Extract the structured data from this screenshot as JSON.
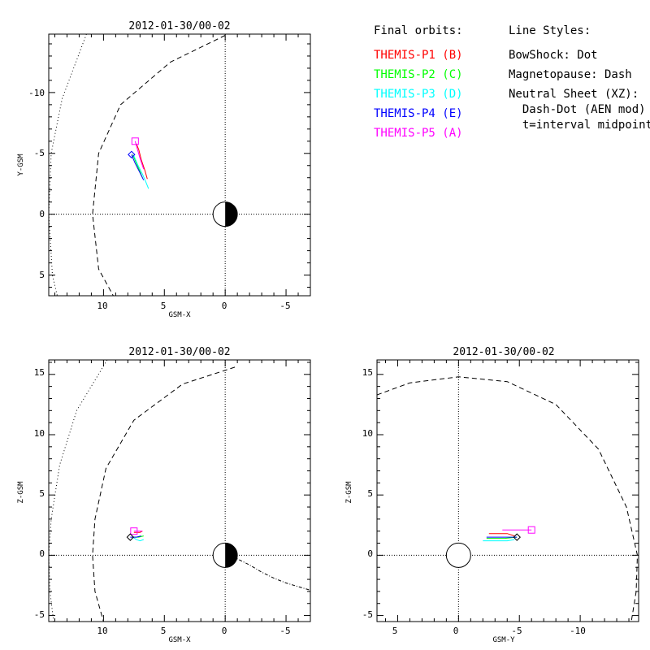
{
  "legend": {
    "orbits_title": "Final orbits:",
    "probes": [
      {
        "label": "THEMIS-P1 (B)",
        "color": "#ff0000"
      },
      {
        "label": "THEMIS-P2 (C)",
        "color": "#00ff00"
      },
      {
        "label": "THEMIS-P3 (D)",
        "color": "#00ffff"
      },
      {
        "label": "THEMIS-P4 (E)",
        "color": "#0000ff"
      },
      {
        "label": "THEMIS-P5 (A)",
        "color": "#ff00ff"
      }
    ],
    "styles_title": "Line Styles:",
    "styles": [
      "BowShock: Dot",
      "Magnetopause: Dash",
      "Neutral Sheet (XZ):",
      "  Dash-Dot (AEN mod)",
      "  t=interval midpoint"
    ]
  },
  "chart_data": [
    {
      "id": "xy",
      "type": "line",
      "title": "2012-01-30/00-02",
      "xlabel": "GSM-X",
      "ylabel": "Y-GSM",
      "xlim": [
        14.5,
        -7
      ],
      "ylim": [
        6.7,
        -14.8
      ],
      "xticks": [
        10,
        5,
        0,
        -5
      ],
      "xtick_labels": [
        "10",
        "5",
        "0",
        "-5"
      ],
      "yticks": [
        -10,
        -5,
        0,
        5
      ],
      "ytick_labels": [
        "-10",
        "-5",
        "0",
        "5"
      ],
      "earth": "day-night",
      "bowshock": [
        [
          11.4,
          -14.8
        ],
        [
          13.4,
          -9.5
        ],
        [
          14.3,
          -5
        ],
        [
          14.5,
          0
        ],
        [
          14.2,
          5
        ],
        [
          13.8,
          6.7
        ]
      ],
      "magnetopause": [
        [
          0,
          -14.7
        ],
        [
          4.5,
          -12.5
        ],
        [
          8.6,
          -9
        ],
        [
          10.4,
          -5
        ],
        [
          10.9,
          0
        ],
        [
          10.4,
          4.5
        ],
        [
          9.2,
          6.7
        ]
      ],
      "series": [
        {
          "name": "THEMIS-P1 (B)",
          "color": "#ff0000",
          "points": [
            [
              7.3,
              -5.8
            ],
            [
              7.1,
              -5.3
            ],
            [
              6.9,
              -4.5
            ],
            [
              6.6,
              -3.6
            ],
            [
              6.4,
              -2.9
            ]
          ]
        },
        {
          "name": "THEMIS-P2 (C)",
          "color": "#00ff00",
          "points": [
            [
              7.6,
              -4.9
            ],
            [
              7.3,
              -4.2
            ],
            [
              7.0,
              -3.5
            ],
            [
              6.8,
              -3.0
            ]
          ]
        },
        {
          "name": "THEMIS-P3 (D)",
          "color": "#00ffff",
          "points": [
            [
              7.5,
              -4.8
            ],
            [
              7.2,
              -4.1
            ],
            [
              6.8,
              -3.3
            ],
            [
              6.5,
              -2.6
            ],
            [
              6.3,
              -2.1
            ]
          ]
        },
        {
          "name": "THEMIS-P4 (E)",
          "color": "#0000ff",
          "points": [
            [
              7.7,
              -4.9
            ],
            [
              7.4,
              -4.2
            ],
            [
              7.0,
              -3.4
            ],
            [
              6.7,
              -2.8
            ]
          ]
        },
        {
          "name": "THEMIS-P5 (A)",
          "color": "#ff00ff",
          "points": [
            [
              7.4,
              -6.0
            ],
            [
              7.2,
              -5.3
            ],
            [
              7.0,
              -4.6
            ],
            [
              6.8,
              -4.0
            ],
            [
              6.7,
              -3.7
            ]
          ]
        }
      ],
      "markers": [
        {
          "shape": "square",
          "color": "#ff00ff",
          "at": [
            7.4,
            -6.0
          ]
        },
        {
          "shape": "diamond",
          "color": "#0000ff",
          "at": [
            7.7,
            -4.9
          ]
        }
      ]
    },
    {
      "id": "xz",
      "type": "line",
      "title": "2012-01-30/00-02",
      "xlabel": "GSM-X",
      "ylabel": "Z-GSM",
      "xlim": [
        14.5,
        -7
      ],
      "ylim": [
        -5.5,
        16.2
      ],
      "xticks": [
        10,
        5,
        0,
        -5
      ],
      "xtick_labels": [
        "10",
        "5",
        "0",
        "-5"
      ],
      "yticks": [
        -5,
        0,
        5,
        10,
        15
      ],
      "ytick_labels": [
        "-5",
        "0",
        "5",
        "10",
        "15"
      ],
      "earth": "day-night",
      "bowshock": [
        [
          9.7,
          16.2
        ],
        [
          12.2,
          12
        ],
        [
          13.6,
          7.5
        ],
        [
          14.3,
          3
        ],
        [
          14.5,
          0
        ],
        [
          14.4,
          -3
        ],
        [
          14.1,
          -5.5
        ]
      ],
      "magnetopause": [
        [
          -0.8,
          15.6
        ],
        [
          3.5,
          14.2
        ],
        [
          7.5,
          11.2
        ],
        [
          9.8,
          7.2
        ],
        [
          10.7,
          3
        ],
        [
          10.9,
          0
        ],
        [
          10.7,
          -3
        ],
        [
          10.0,
          -5.5
        ]
      ],
      "neutral_sheet": [
        [
          0,
          0
        ],
        [
          -1,
          -0.3
        ],
        [
          -2,
          -0.8
        ],
        [
          -3,
          -1.4
        ],
        [
          -4,
          -1.9
        ],
        [
          -5,
          -2.3
        ],
        [
          -6,
          -2.6
        ],
        [
          -7,
          -2.9
        ]
      ],
      "series": [
        {
          "name": "THEMIS-P1 (B)",
          "color": "#ff0000",
          "points": [
            [
              7.5,
              1.9
            ],
            [
              7.0,
              1.9
            ],
            [
              6.8,
              2.0
            ]
          ]
        },
        {
          "name": "THEMIS-P2 (C)",
          "color": "#00ff00",
          "points": [
            [
              7.6,
              1.5
            ],
            [
              7.1,
              1.5
            ],
            [
              6.7,
              1.6
            ]
          ]
        },
        {
          "name": "THEMIS-P3 (D)",
          "color": "#00ffff",
          "points": [
            [
              7.6,
              1.5
            ],
            [
              7.3,
              1.3
            ],
            [
              7.0,
              1.2
            ],
            [
              6.7,
              1.3
            ]
          ]
        },
        {
          "name": "THEMIS-P4 (E)",
          "color": "#0000ff",
          "points": [
            [
              7.8,
              1.5
            ],
            [
              7.3,
              1.5
            ],
            [
              6.9,
              1.6
            ]
          ]
        },
        {
          "name": "THEMIS-P5 (A)",
          "color": "#ff00ff",
          "points": [
            [
              7.5,
              2.0
            ],
            [
              7.1,
              2.0
            ],
            [
              6.8,
              2.0
            ]
          ]
        }
      ],
      "markers": [
        {
          "shape": "square",
          "color": "#ff00ff",
          "at": [
            7.5,
            2.0
          ]
        },
        {
          "shape": "diamond",
          "color": "#000000",
          "at": [
            7.8,
            1.5
          ]
        }
      ]
    },
    {
      "id": "yz",
      "type": "line",
      "title": "2012-01-30/00-02",
      "xlabel": "GSM-Y",
      "ylabel": "Z-GSM",
      "xlim": [
        6.7,
        -14.8
      ],
      "ylim": [
        -5.5,
        16.2
      ],
      "xticks": [
        5,
        0,
        -5,
        -10
      ],
      "xtick_labels": [
        "5",
        "0",
        "-5",
        "-10"
      ],
      "yticks": [
        -5,
        0,
        5,
        10,
        15
      ],
      "ytick_labels": [
        "-5",
        "0",
        "5",
        "10",
        "15"
      ],
      "earth": "circle",
      "magnetopause": [
        [
          6.7,
          13.3
        ],
        [
          4,
          14.3
        ],
        [
          0,
          14.8
        ],
        [
          -4,
          14.4
        ],
        [
          -8,
          12.5
        ],
        [
          -11.5,
          8.8
        ],
        [
          -13.8,
          4
        ],
        [
          -14.7,
          0
        ],
        [
          -14.6,
          -3
        ],
        [
          -14.2,
          -5.5
        ]
      ],
      "series": [
        {
          "name": "THEMIS-P1 (B)",
          "color": "#ff0000",
          "points": [
            [
              -2.5,
              1.8
            ],
            [
              -4,
              1.8
            ],
            [
              -4.6,
              1.6
            ]
          ]
        },
        {
          "name": "THEMIS-P2 (C)",
          "color": "#00ff00",
          "points": [
            [
              -2.3,
              1.4
            ],
            [
              -3.8,
              1.4
            ],
            [
              -4.8,
              1.5
            ]
          ]
        },
        {
          "name": "THEMIS-P3 (D)",
          "color": "#00ffff",
          "points": [
            [
              -2,
              1.2
            ],
            [
              -3,
              1.2
            ],
            [
              -4,
              1.2
            ],
            [
              -4.6,
              1.3
            ]
          ]
        },
        {
          "name": "THEMIS-P4 (E)",
          "color": "#0000ff",
          "points": [
            [
              -2.3,
              1.5
            ],
            [
              -3.6,
              1.5
            ],
            [
              -4.8,
              1.5
            ]
          ]
        },
        {
          "name": "THEMIS-P5 (A)",
          "color": "#ff00ff",
          "points": [
            [
              -3.6,
              2.1
            ],
            [
              -5,
              2.1
            ],
            [
              -6.0,
              2.1
            ]
          ]
        }
      ],
      "markers": [
        {
          "shape": "square",
          "color": "#ff00ff",
          "at": [
            -6.0,
            2.1
          ]
        },
        {
          "shape": "diamond",
          "color": "#000000",
          "at": [
            -4.8,
            1.5
          ]
        }
      ]
    }
  ]
}
